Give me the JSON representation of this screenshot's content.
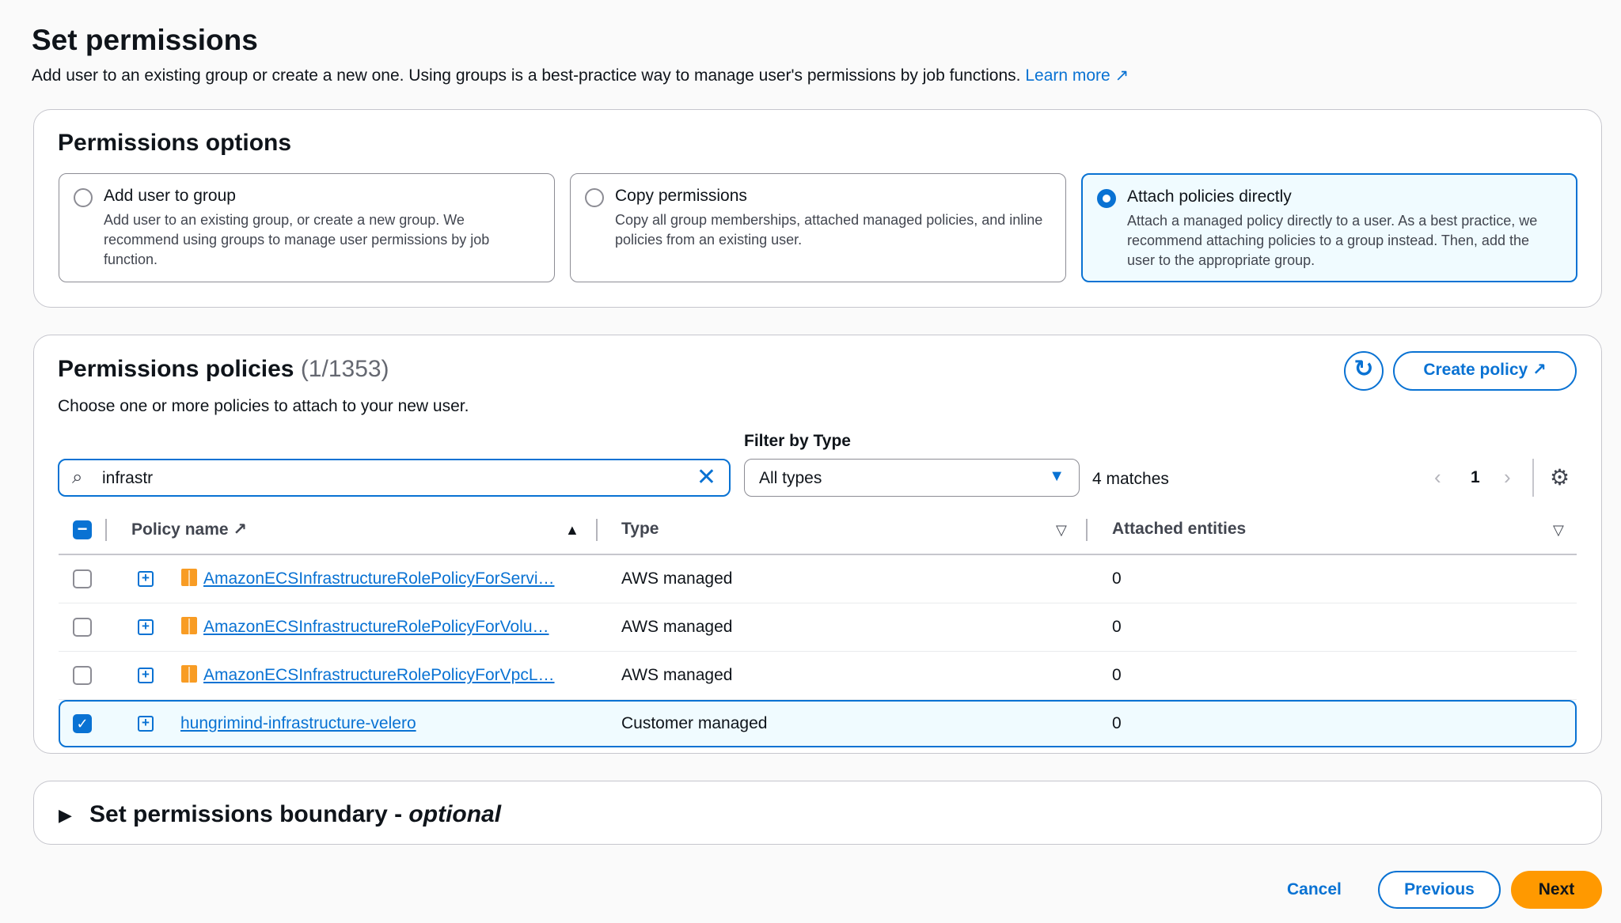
{
  "page": {
    "title": "Set permissions",
    "description": "Add user to an existing group or create a new one. Using groups is a best-practice way to manage user's permissions by job functions.",
    "learn_more": "Learn more"
  },
  "options": {
    "title": "Permissions options",
    "items": [
      {
        "label": "Add user to group",
        "description": "Add user to an existing group, or create a new group. We recommend using groups to manage user permissions by job function.",
        "selected": false
      },
      {
        "label": "Copy permissions",
        "description": "Copy all group memberships, attached managed policies, and inline policies from an existing user.",
        "selected": false
      },
      {
        "label": "Attach policies directly",
        "description": "Attach a managed policy directly to a user. As a best practice, we recommend attaching policies to a group instead. Then, add the user to the appropriate group.",
        "selected": true
      }
    ]
  },
  "policies": {
    "title": "Permissions policies",
    "count": "(1/1353)",
    "description": "Choose one or more policies to attach to your new user.",
    "create_policy": "Create policy",
    "search_value": "infrastr",
    "filter_label": "Filter by Type",
    "filter_value": "All types",
    "matches": "4 matches",
    "page": "1",
    "columns": {
      "name": "Policy name",
      "type": "Type",
      "attached": "Attached entities"
    },
    "rows": [
      {
        "name": "AmazonECSInfrastructureRolePolicyForServi…",
        "type": "AWS managed",
        "attached": "0",
        "checked": false,
        "aws_icon": true
      },
      {
        "name": "AmazonECSInfrastructureRolePolicyForVolu…",
        "type": "AWS managed",
        "attached": "0",
        "checked": false,
        "aws_icon": true
      },
      {
        "name": "AmazonECSInfrastructureRolePolicyForVpcL…",
        "type": "AWS managed",
        "attached": "0",
        "checked": false,
        "aws_icon": true
      },
      {
        "name": "hungrimind-infrastructure-velero",
        "type": "Customer managed",
        "attached": "0",
        "checked": true,
        "aws_icon": false
      }
    ]
  },
  "boundary": {
    "title": "Set permissions boundary - ",
    "optional": "optional"
  },
  "footer": {
    "cancel": "Cancel",
    "previous": "Previous",
    "next": "Next"
  },
  "colors": {
    "accent": "#0972d3",
    "next": "#ff9900",
    "aws_icon": "#f89c24"
  }
}
